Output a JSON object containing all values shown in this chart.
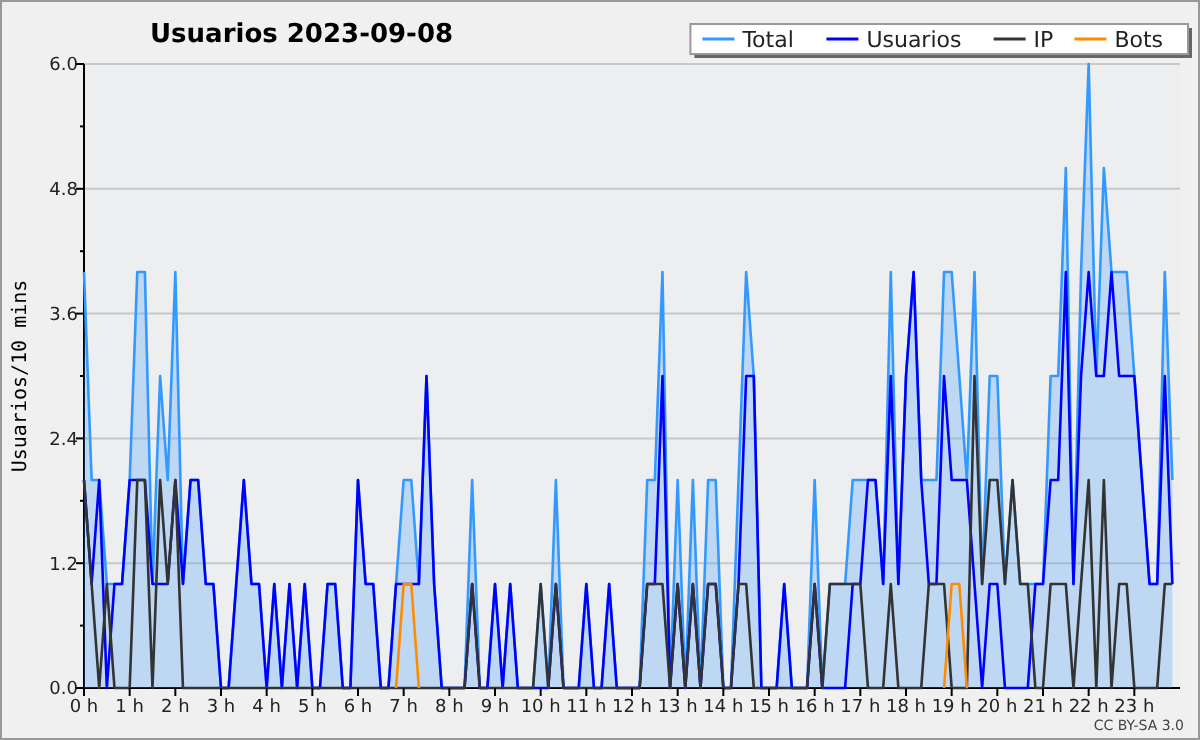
{
  "chart_data": {
    "type": "line",
    "title": "Usuarios  2023-09-08",
    "ylabel": "Usuarios/10 mins",
    "x": [
      0,
      0.167,
      0.333,
      0.5,
      0.667,
      0.833,
      1,
      1.167,
      1.333,
      1.5,
      1.667,
      1.833,
      2,
      2.167,
      2.333,
      2.5,
      2.667,
      2.833,
      3,
      3.167,
      3.333,
      3.5,
      3.667,
      3.833,
      4,
      4.167,
      4.333,
      4.5,
      4.667,
      4.833,
      5,
      5.167,
      5.333,
      5.5,
      5.667,
      5.833,
      6,
      6.167,
      6.333,
      6.5,
      6.667,
      6.833,
      7,
      7.167,
      7.333,
      7.5,
      7.667,
      7.833,
      8,
      8.167,
      8.333,
      8.5,
      8.667,
      8.833,
      9,
      9.167,
      9.333,
      9.5,
      9.667,
      9.833,
      10,
      10.167,
      10.333,
      10.5,
      10.667,
      10.833,
      11,
      11.167,
      11.333,
      11.5,
      11.667,
      11.833,
      12,
      12.167,
      12.333,
      12.5,
      12.667,
      12.833,
      13,
      13.167,
      13.333,
      13.5,
      13.667,
      13.833,
      14,
      14.167,
      14.333,
      14.5,
      14.667,
      14.833,
      15,
      15.167,
      15.333,
      15.5,
      15.667,
      15.833,
      16,
      16.167,
      16.333,
      16.5,
      16.667,
      16.833,
      17,
      17.167,
      17.333,
      17.5,
      17.667,
      17.833,
      18,
      18.167,
      18.333,
      18.5,
      18.667,
      18.833,
      19,
      19.167,
      19.333,
      19.5,
      19.667,
      19.833,
      20,
      20.167,
      20.333,
      20.5,
      20.667,
      20.833,
      21,
      21.167,
      21.333,
      21.5,
      21.667,
      21.833,
      22,
      22.167,
      22.333,
      22.5,
      22.667,
      22.833,
      23,
      23.167,
      23.333,
      23.5,
      23.667,
      23.833
    ],
    "series": [
      {
        "name": "Total",
        "type": "area",
        "color": "#3399ff",
        "values": [
          4,
          2,
          2,
          1,
          1,
          1,
          2,
          4,
          4,
          1,
          3,
          2,
          4,
          1,
          2,
          2,
          1,
          1,
          0,
          0,
          1,
          2,
          1,
          1,
          0,
          1,
          0,
          1,
          0,
          1,
          0,
          0,
          1,
          1,
          0,
          0,
          2,
          1,
          1,
          0,
          0,
          1,
          2,
          2,
          1,
          3,
          1,
          0,
          0,
          0,
          0,
          2,
          0,
          0,
          1,
          0,
          1,
          0,
          0,
          0,
          1,
          0,
          2,
          0,
          0,
          0,
          1,
          0,
          0,
          1,
          0,
          0,
          0,
          0,
          2,
          2,
          4,
          0,
          2,
          0,
          2,
          0,
          2,
          2,
          0,
          0,
          2,
          4,
          3,
          0,
          0,
          0,
          1,
          0,
          0,
          0,
          2,
          0,
          1,
          1,
          1,
          2,
          2,
          2,
          2,
          1,
          4,
          1,
          3,
          4,
          2,
          2,
          2,
          4,
          4,
          3,
          2,
          4,
          1,
          3,
          3,
          1,
          2,
          1,
          1,
          1,
          1,
          3,
          3,
          5,
          1,
          4,
          6,
          3,
          5,
          4,
          4,
          4,
          3,
          2,
          1,
          1,
          4,
          2
        ]
      },
      {
        "name": "Usuarios",
        "color": "#0000ff",
        "values": [
          2,
          1,
          2,
          0,
          1,
          1,
          2,
          2,
          2,
          1,
          1,
          1,
          2,
          1,
          2,
          2,
          1,
          1,
          0,
          0,
          1,
          2,
          1,
          1,
          0,
          1,
          0,
          1,
          0,
          1,
          0,
          0,
          1,
          1,
          0,
          0,
          2,
          1,
          1,
          0,
          0,
          1,
          1,
          1,
          1,
          3,
          1,
          0,
          0,
          0,
          0,
          1,
          0,
          0,
          1,
          0,
          1,
          0,
          0,
          0,
          0,
          0,
          1,
          0,
          0,
          0,
          1,
          0,
          0,
          1,
          0,
          0,
          0,
          0,
          1,
          1,
          3,
          0,
          1,
          0,
          1,
          0,
          1,
          1,
          0,
          0,
          1,
          3,
          3,
          0,
          0,
          0,
          1,
          0,
          0,
          0,
          1,
          0,
          0,
          0,
          0,
          1,
          1,
          2,
          2,
          1,
          3,
          1,
          3,
          4,
          2,
          1,
          1,
          3,
          2,
          2,
          2,
          1,
          0,
          1,
          1,
          0,
          0,
          0,
          0,
          1,
          1,
          2,
          2,
          4,
          1,
          3,
          4,
          3,
          3,
          4,
          3,
          3,
          3,
          2,
          1,
          1,
          3,
          1
        ]
      },
      {
        "name": "IP",
        "color": "#333333",
        "values": [
          2,
          1,
          0,
          1,
          0,
          0,
          0,
          2,
          2,
          0,
          2,
          1,
          2,
          0,
          0,
          0,
          0,
          0,
          0,
          0,
          0,
          0,
          0,
          0,
          0,
          0,
          0,
          0,
          0,
          0,
          0,
          0,
          0,
          0,
          0,
          0,
          0,
          0,
          0,
          0,
          0,
          0,
          0,
          0,
          0,
          0,
          0,
          0,
          0,
          0,
          0,
          1,
          0,
          0,
          0,
          0,
          0,
          0,
          0,
          0,
          1,
          0,
          1,
          0,
          0,
          0,
          0,
          0,
          0,
          0,
          0,
          0,
          0,
          0,
          1,
          1,
          1,
          0,
          1,
          0,
          1,
          0,
          1,
          1,
          0,
          0,
          1,
          1,
          0,
          0,
          0,
          0,
          0,
          0,
          0,
          0,
          1,
          0,
          1,
          1,
          1,
          1,
          1,
          0,
          0,
          0,
          1,
          0,
          0,
          0,
          0,
          1,
          1,
          1,
          0,
          0,
          0,
          3,
          1,
          2,
          2,
          1,
          2,
          1,
          1,
          0,
          0,
          1,
          1,
          1,
          0,
          1,
          2,
          0,
          2,
          0,
          1,
          1,
          0,
          0,
          0,
          0,
          1,
          1
        ]
      },
      {
        "name": "Bots",
        "color": "#ff8c00",
        "values": [
          null,
          null,
          null,
          null,
          null,
          null,
          null,
          null,
          null,
          null,
          null,
          null,
          null,
          null,
          null,
          null,
          null,
          null,
          null,
          null,
          null,
          null,
          null,
          null,
          null,
          null,
          null,
          null,
          null,
          null,
          null,
          null,
          null,
          null,
          null,
          null,
          null,
          null,
          null,
          null,
          null,
          0,
          1,
          1,
          0,
          null,
          null,
          null,
          null,
          null,
          null,
          null,
          null,
          null,
          null,
          null,
          null,
          null,
          null,
          null,
          null,
          null,
          null,
          null,
          null,
          null,
          null,
          null,
          null,
          null,
          null,
          null,
          null,
          null,
          null,
          null,
          null,
          null,
          null,
          null,
          null,
          null,
          null,
          null,
          null,
          null,
          null,
          null,
          null,
          null,
          null,
          null,
          null,
          null,
          null,
          null,
          null,
          null,
          null,
          null,
          null,
          null,
          null,
          null,
          null,
          null,
          null,
          null,
          null,
          null,
          null,
          null,
          null,
          0,
          1,
          1,
          0,
          null,
          null,
          null,
          null,
          null,
          null,
          null,
          null,
          null,
          null,
          null,
          null,
          null,
          null,
          null,
          null,
          null,
          null,
          null,
          null,
          null,
          null,
          null,
          null,
          null,
          null,
          null
        ]
      }
    ],
    "xlim": [
      0,
      24
    ],
    "xticks": [
      {
        "value": 0,
        "label": "0 h"
      },
      {
        "value": 1,
        "label": "1 h"
      },
      {
        "value": 2,
        "label": "2 h"
      },
      {
        "value": 3,
        "label": "3 h"
      },
      {
        "value": 4,
        "label": "4 h"
      },
      {
        "value": 5,
        "label": "5 h"
      },
      {
        "value": 6,
        "label": "6 h"
      },
      {
        "value": 7,
        "label": "7 h"
      },
      {
        "value": 8,
        "label": "8 h"
      },
      {
        "value": 9,
        "label": "9 h"
      },
      {
        "value": 10,
        "label": "10 h"
      },
      {
        "value": 11,
        "label": "11 h"
      },
      {
        "value": 12,
        "label": "12 h"
      },
      {
        "value": 13,
        "label": "13 h"
      },
      {
        "value": 14,
        "label": "14 h"
      },
      {
        "value": 15,
        "label": "15 h"
      },
      {
        "value": 16,
        "label": "16 h"
      },
      {
        "value": 17,
        "label": "17 h"
      },
      {
        "value": 18,
        "label": "18 h"
      },
      {
        "value": 19,
        "label": "19 h"
      },
      {
        "value": 20,
        "label": "20 h"
      },
      {
        "value": 21,
        "label": "21 h"
      },
      {
        "value": 22,
        "label": "22 h"
      },
      {
        "value": 23,
        "label": "23 h"
      }
    ],
    "ylim": [
      0,
      6
    ],
    "yticks": [
      {
        "value": 0,
        "label": "0.0"
      },
      {
        "value": 0.6,
        "label": null
      },
      {
        "value": 1.2,
        "label": "1.2"
      },
      {
        "value": 1.8,
        "label": null
      },
      {
        "value": 2.4,
        "label": "2.4"
      },
      {
        "value": 3,
        "label": null
      },
      {
        "value": 3.6,
        "label": "3.6"
      },
      {
        "value": 4.2,
        "label": null
      },
      {
        "value": 4.8,
        "label": "4.8"
      },
      {
        "value": 5.4,
        "label": null
      },
      {
        "value": 6,
        "label": "6.0"
      }
    ],
    "grid": "y",
    "legend": "top right",
    "marker": "none",
    "line_style": "solid",
    "annotations": [
      "CC BY-SA 3.0"
    ]
  }
}
